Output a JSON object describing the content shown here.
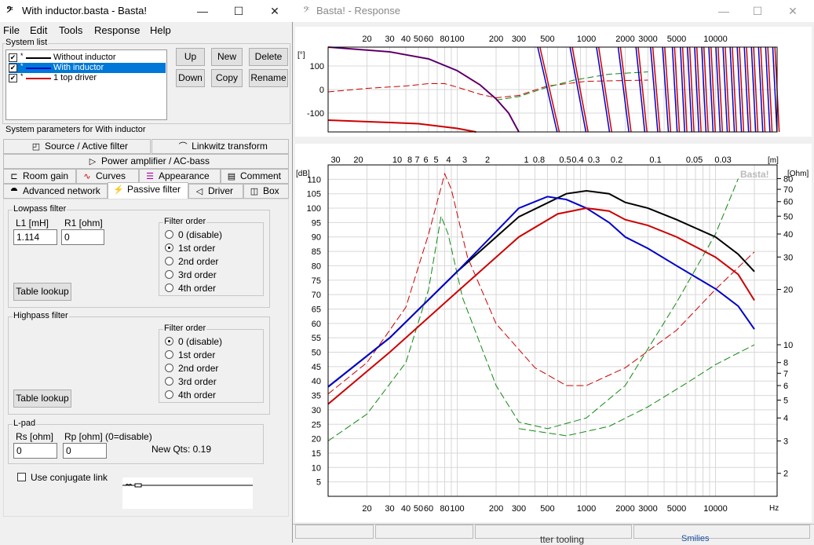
{
  "main_window": {
    "title": "With inductor.basta - Basta!",
    "menu": [
      "File",
      "Edit",
      "Tools",
      "Response",
      "Help"
    ],
    "system_list_label": "System list",
    "systems": [
      {
        "name": "Without inductor",
        "color": "#000000",
        "checked": true,
        "selected": false
      },
      {
        "name": "With inductor",
        "color": "#0000cc",
        "checked": true,
        "selected": true
      },
      {
        "name": "1 top driver",
        "color": "#cc0000",
        "checked": true,
        "selected": false
      }
    ],
    "buttons": {
      "up": "Up",
      "new": "New",
      "delete": "Delete",
      "down": "Down",
      "copy": "Copy",
      "rename": "Rename"
    },
    "params_label": "System parameters for With inductor",
    "tabs": {
      "source": "Source / Active filter",
      "linkwitz": "Linkwitz transform",
      "amp": "Power amplifier / AC-bass",
      "room": "Room gain",
      "curves": "Curves",
      "appearance": "Appearance",
      "comment": "Comment",
      "advanced": "Advanced network",
      "passive": "Passive filter",
      "driver": "Driver",
      "box": "Box"
    },
    "lowpass": {
      "label": "Lowpass filter",
      "l1_label": "L1 [mH]",
      "l1_value": "1.114",
      "r1_label": "R1 [ohm]",
      "r1_value": "0",
      "order_label": "Filter order",
      "orders": [
        "0 (disable)",
        "1st order",
        "2nd order",
        "3rd order",
        "4th order"
      ],
      "selected_order": 1,
      "table_lookup": "Table lookup"
    },
    "highpass": {
      "label": "Highpass filter",
      "order_label": "Filter order",
      "orders": [
        "0 (disable)",
        "1st order",
        "2nd order",
        "3rd order",
        "4th order"
      ],
      "selected_order": 0,
      "table_lookup": "Table lookup"
    },
    "lpad": {
      "label": "L-pad",
      "rs_label": "Rs [ohm]",
      "rs_value": "0",
      "rp_label": "Rp [ohm] (0=disable)",
      "rp_value": "0",
      "new_qts": "New Qts: 0.19"
    },
    "conjugate_label": "Use conjugate link"
  },
  "response_window": {
    "title": "Basta! - Response",
    "watermark": "Basta!",
    "bottom_texts": [
      "tter tooling",
      "Smilies"
    ]
  },
  "chart_data": [
    {
      "type": "line",
      "name": "phase",
      "ylabel": "[°]",
      "x_scale": "log",
      "xlim": [
        10,
        30000
      ],
      "ylim": [
        -180,
        180
      ],
      "x_ticks": [
        "20",
        "30",
        "40",
        "50",
        "60",
        "80",
        "100",
        "200",
        "300",
        "500",
        "1000",
        "2000",
        "3000",
        "5000",
        "10000"
      ],
      "y_ticks": [
        "100",
        "0",
        "-100"
      ],
      "grid": true
    },
    {
      "type": "line",
      "name": "spl_impedance",
      "ylabel": "[dB]",
      "y2label": "[Ohm]",
      "top_axis_label": "[m]",
      "xlabel": "Hz",
      "x_scale": "log",
      "xlim": [
        10,
        30000
      ],
      "ylim": [
        0,
        115
      ],
      "x_ticks": [
        "20",
        "30",
        "40",
        "50",
        "60",
        "80",
        "100",
        "200",
        "300",
        "500",
        "1000",
        "2000",
        "3000",
        "5000",
        "10000"
      ],
      "y_ticks": [
        "5",
        "10",
        "15",
        "20",
        "25",
        "30",
        "35",
        "40",
        "45",
        "50",
        "55",
        "60",
        "65",
        "70",
        "75",
        "80",
        "85",
        "90",
        "95",
        "100",
        "105",
        "110"
      ],
      "y2_ticks": [
        "80",
        "70",
        "60",
        "50",
        "40",
        "30",
        "20",
        "10",
        "8",
        "7",
        "6",
        "5",
        "4",
        "3",
        "2"
      ],
      "top_ticks": [
        "30",
        "20",
        "10",
        "8",
        "7",
        "6",
        "5",
        "4",
        "3",
        "2",
        "1",
        "0.8",
        "0.5",
        "0.4",
        "0.3",
        "0.2",
        "0.1",
        "0.05",
        "0.03"
      ],
      "grid": true,
      "series": [
        {
          "name": "Without inductor",
          "color": "#000000",
          "x": [
            10,
            30,
            100,
            300,
            700,
            1000,
            1500,
            2000,
            3000,
            5000,
            10000,
            15000,
            20000
          ],
          "y": [
            38,
            55,
            78,
            97,
            105,
            106,
            105,
            102,
            100,
            96,
            90,
            84,
            78
          ]
        },
        {
          "name": "With inductor",
          "color": "#0000cc",
          "x": [
            10,
            30,
            100,
            300,
            500,
            700,
            1000,
            1500,
            2000,
            3000,
            5000,
            10000,
            15000,
            20000
          ],
          "y": [
            38,
            55,
            78,
            100,
            104,
            103,
            100,
            95,
            90,
            86,
            80,
            72,
            66,
            58
          ]
        },
        {
          "name": "1 top driver",
          "color": "#cc0000",
          "x": [
            10,
            30,
            100,
            300,
            600,
            1000,
            1500,
            2000,
            3000,
            5000,
            10000,
            15000,
            20000
          ],
          "y": [
            32,
            50,
            71,
            90,
            98,
            100,
            99,
            96,
            94,
            90,
            83,
            77,
            68
          ]
        }
      ]
    }
  ]
}
